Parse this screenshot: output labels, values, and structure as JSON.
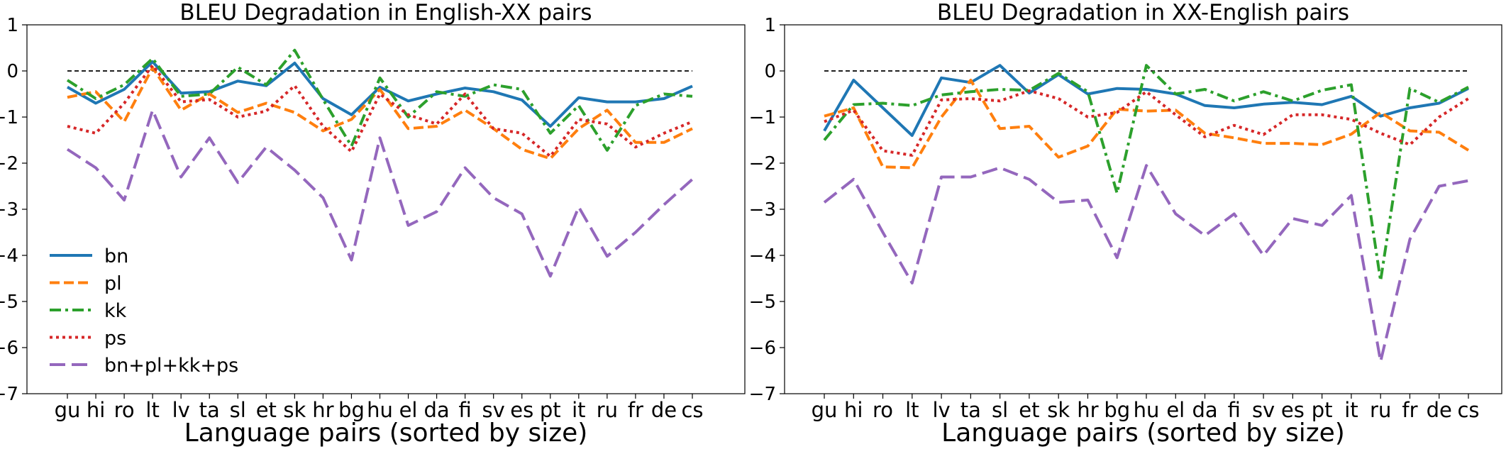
{
  "chart_data": [
    {
      "type": "line",
      "title": "BLEU Degradation in English-XX pairs",
      "xlabel": "Language pairs (sorted by size)",
      "ylabel": "",
      "ylim": [
        -7,
        1
      ],
      "yticks": [
        "1",
        "0",
        "−1",
        "−2",
        "−3",
        "−4",
        "−5",
        "−6",
        "−7"
      ],
      "categories": [
        "gu",
        "hi",
        "ro",
        "lt",
        "lv",
        "ta",
        "sl",
        "et",
        "sk",
        "hr",
        "bg",
        "hu",
        "el",
        "da",
        "fi",
        "sv",
        "es",
        "pt",
        "it",
        "ru",
        "fr",
        "de",
        "cs"
      ],
      "legend_position": "lower-left",
      "series": [
        {
          "name": "bn",
          "color": "#1f77b4",
          "dash": "solid",
          "values": [
            -0.35,
            -0.7,
            -0.4,
            0.2,
            -0.48,
            -0.45,
            -0.22,
            -0.32,
            0.17,
            -0.6,
            -0.95,
            -0.35,
            -0.65,
            -0.5,
            -0.37,
            -0.45,
            -0.63,
            -1.2,
            -0.58,
            -0.67,
            -0.67,
            -0.6,
            -0.33
          ]
        },
        {
          "name": "pl",
          "color": "#ff7f0e",
          "dash": "dashed",
          "values": [
            -0.57,
            -0.45,
            -1.1,
            0.07,
            -0.85,
            -0.5,
            -0.9,
            -0.7,
            -0.9,
            -1.3,
            -1.05,
            -0.4,
            -1.25,
            -1.2,
            -0.85,
            -1.25,
            -1.7,
            -1.9,
            -1.25,
            -0.85,
            -1.55,
            -1.55,
            -1.25
          ]
        },
        {
          "name": "kk",
          "color": "#2ca02c",
          "dash": "dashdot",
          "values": [
            -0.2,
            -0.6,
            -0.3,
            0.27,
            -0.55,
            -0.5,
            0.08,
            -0.3,
            0.45,
            -0.62,
            -1.63,
            -0.15,
            -1.0,
            -0.45,
            -0.55,
            -0.3,
            -0.4,
            -1.35,
            -0.75,
            -1.72,
            -0.75,
            -0.5,
            -0.55
          ]
        },
        {
          "name": "ps",
          "color": "#d62728",
          "dash": "dotted",
          "values": [
            -1.2,
            -1.35,
            -0.7,
            0.12,
            -0.67,
            -0.62,
            -1.0,
            -0.87,
            -0.32,
            -1.2,
            -1.75,
            -0.5,
            -0.95,
            -1.15,
            -0.5,
            -1.25,
            -1.35,
            -1.85,
            -1.05,
            -1.15,
            -1.65,
            -1.35,
            -1.1
          ]
        },
        {
          "name": "bn+pl+kk+ps",
          "color": "#9467bd",
          "dash": "longdash",
          "values": [
            -1.7,
            -2.1,
            -2.8,
            -0.85,
            -2.3,
            -1.45,
            -2.42,
            -1.65,
            -2.15,
            -2.75,
            -4.1,
            -1.45,
            -3.35,
            -3.05,
            -2.1,
            -2.75,
            -3.1,
            -4.45,
            -2.95,
            -4.02,
            -3.5,
            -2.9,
            -2.35
          ]
        }
      ]
    },
    {
      "type": "line",
      "title": "BLEU Degradation in XX-English pairs",
      "xlabel": "Language pairs (sorted by size)",
      "ylabel": "",
      "ylim": [
        -7,
        1
      ],
      "yticks": [
        "1",
        "0",
        "−1",
        "−2",
        "−3",
        "−4",
        "−5",
        "−6",
        "−7"
      ],
      "categories": [
        "gu",
        "hi",
        "ro",
        "lt",
        "lv",
        "ta",
        "sl",
        "et",
        "sk",
        "hr",
        "bg",
        "hu",
        "el",
        "da",
        "fi",
        "sv",
        "es",
        "pt",
        "it",
        "ru",
        "fr",
        "de",
        "cs"
      ],
      "series": [
        {
          "name": "bn",
          "color": "#1f77b4",
          "dash": "solid",
          "values": [
            -1.3,
            -0.2,
            -0.8,
            -1.4,
            -0.15,
            -0.25,
            0.12,
            -0.48,
            -0.08,
            -0.5,
            -0.38,
            -0.4,
            -0.5,
            -0.75,
            -0.8,
            -0.72,
            -0.68,
            -0.73,
            -0.55,
            -0.98,
            -0.8,
            -0.7,
            -0.38
          ]
        },
        {
          "name": "pl",
          "color": "#ff7f0e",
          "dash": "dashed",
          "values": [
            -0.98,
            -0.8,
            -2.08,
            -2.1,
            -1.0,
            -0.2,
            -1.25,
            -1.2,
            -1.87,
            -1.63,
            -0.83,
            -0.87,
            -0.85,
            -1.35,
            -1.45,
            -1.57,
            -1.57,
            -1.6,
            -1.37,
            -0.9,
            -1.3,
            -1.33,
            -1.72
          ]
        },
        {
          "name": "kk",
          "color": "#2ca02c",
          "dash": "dashdot",
          "values": [
            -1.5,
            -0.73,
            -0.7,
            -0.75,
            -0.52,
            -0.45,
            -0.4,
            -0.42,
            -0.05,
            -0.45,
            -2.65,
            0.12,
            -0.5,
            -0.4,
            -0.65,
            -0.45,
            -0.65,
            -0.42,
            -0.3,
            -4.55,
            -0.38,
            -0.68,
            -0.35
          ]
        },
        {
          "name": "ps",
          "color": "#d62728",
          "dash": "dotted",
          "values": [
            -1.1,
            -0.85,
            -1.73,
            -1.83,
            -0.63,
            -0.6,
            -0.65,
            -0.43,
            -0.6,
            -1.0,
            -0.9,
            -0.45,
            -0.95,
            -1.43,
            -1.18,
            -1.38,
            -0.95,
            -0.95,
            -1.05,
            -1.35,
            -1.6,
            -1.0,
            -0.6
          ]
        },
        {
          "name": "bn+pl+kk+ps",
          "color": "#9467bd",
          "dash": "longdash",
          "values": [
            -2.85,
            -2.35,
            -3.5,
            -4.6,
            -2.3,
            -2.3,
            -2.1,
            -2.35,
            -2.85,
            -2.8,
            -4.05,
            -2.05,
            -3.1,
            -3.57,
            -3.1,
            -4.0,
            -3.2,
            -3.35,
            -2.7,
            -6.3,
            -3.65,
            -2.5,
            -2.38
          ]
        }
      ]
    }
  ]
}
